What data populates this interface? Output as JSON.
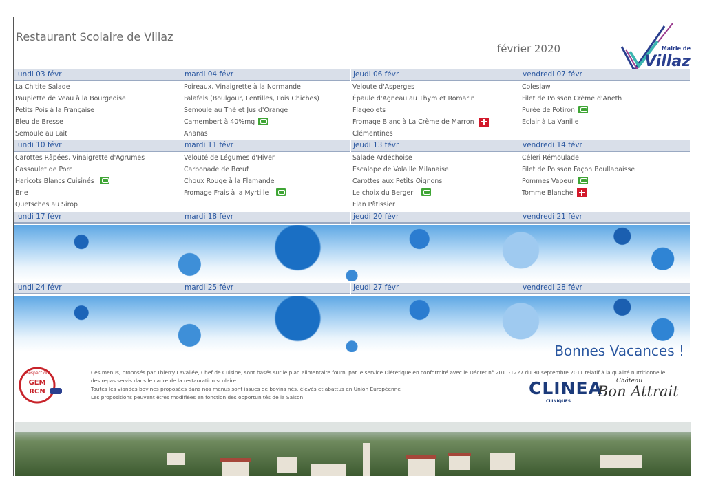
{
  "header": {
    "title": "Restaurant Scolaire de Villaz",
    "month": "février 2020",
    "logo": {
      "line1": "Mairie de",
      "line2": "Villaz"
    }
  },
  "weeks": [
    {
      "days": [
        {
          "label": "lundi 03 févr",
          "items": [
            "La Ch'tite Salade",
            "Paupiette de Veau à la Bourgeoise",
            "Petits Pois à la Française",
            "Bleu de Bresse",
            "Semoule au Lait"
          ]
        },
        {
          "label": "mardi 04 févr",
          "items": [
            "Poireaux, Vinaigrette à la Normande",
            "Falafels (Boulgour, Lentilles, Pois Chiches)",
            "Semoule au Thé et Jus d'Orange",
            "Camembert à 40%mg",
            "Ananas"
          ]
        },
        {
          "label": "jeudi 06 févr",
          "items": [
            "Veloute d'Asperges",
            "Épaule d'Agneau au Thym et Romarin",
            "Flageolets",
            "Fromage Blanc à La Crème de Marron",
            "Clémentines"
          ]
        },
        {
          "label": "vendredi 07 févr",
          "items": [
            "Coleslaw",
            "Filet de Poisson Crème d'Aneth",
            "Purée de Potiron",
            "Eclair à La Vanille"
          ]
        }
      ]
    },
    {
      "days": [
        {
          "label": "lundi 10 févr",
          "items": [
            "Carottes Râpées, Vinaigrette d'Agrumes",
            "Cassoulet de Porc",
            "Haricots Blancs Cuisinés",
            "Brie",
            "Quetsches au Sirop"
          ]
        },
        {
          "label": "mardi 11 févr",
          "items": [
            "Velouté de Légumes d'Hiver",
            "Carbonade de Bœuf",
            "Choux Rouge à la Flamande",
            "Fromage Frais à la Myrtille"
          ]
        },
        {
          "label": "jeudi 13 févr",
          "items": [
            "Salade Ardéchoise",
            "Escalope de Volaille Milanaise",
            "Carottes aux Petits Oignons",
            "Le choix du Berger",
            "Flan Pâtissier"
          ]
        },
        {
          "label": "vendredi 14 févr",
          "items": [
            "Céleri Rémoulade",
            "Filet de Poisson Façon Boullabaisse",
            "Pommes Vapeur",
            "Tomme Blanche"
          ]
        }
      ]
    },
    {
      "days": [
        {
          "label": "lundi 17 févr",
          "items": []
        },
        {
          "label": "mardi 18 févr",
          "items": []
        },
        {
          "label": "jeudi 20 févr",
          "items": []
        },
        {
          "label": "vendredi 21 févr",
          "items": []
        }
      ]
    },
    {
      "days": [
        {
          "label": "lundi 24 févr",
          "items": []
        },
        {
          "label": "mardi 25 févr",
          "items": []
        },
        {
          "label": "jeudi 27 févr",
          "items": []
        },
        {
          "label": "vendredi 28 févr",
          "items": []
        }
      ]
    }
  ],
  "footer": {
    "message": "Bonnes Vacances !",
    "notes": [
      "Ces menus, proposés par Thierry Lavallée, Chef de Cuisine, sont basés sur le plan alimentaire fourni par le service Diététique en conformité avec le Décret n° 2011-1227 du 30 septembre 2011 relatif à la qualité nutritionnelle",
      "des repas servis dans le cadre de la restauration scolaire.",
      "Toutes les viandes bovines proposées dans nos menus sont issues de bovins nés, élevés et abattus en Union Européenne",
      "Les propositions peuvent êtres modifiées en fonction des opportunités de la Saison."
    ],
    "logos": {
      "gem": [
        "Respect du",
        "GEM",
        "RCN"
      ],
      "clinea": "CLINEA",
      "clinea_sub": "CLINIQUES",
      "chateau": [
        "Château",
        "Bon Attrait"
      ]
    }
  }
}
